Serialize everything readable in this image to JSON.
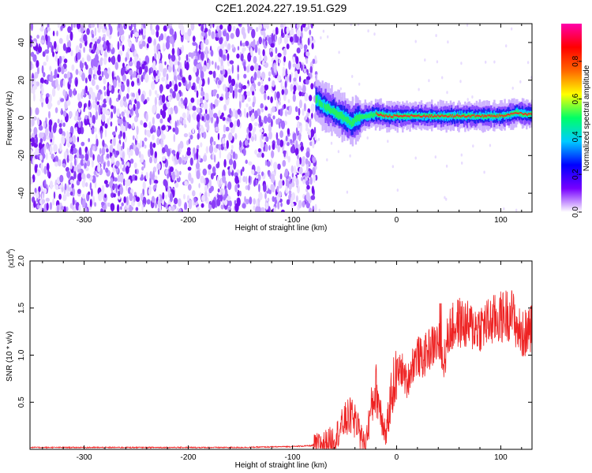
{
  "title": "C2E1.2024.227.19.51.G29",
  "chart_data": [
    {
      "type": "heatmap",
      "title": "C2E1.2024.227.19.51.G29",
      "xlabel": "Height of straight line (km)",
      "ylabel": "Frequency (Hz)",
      "xlim": [
        -352,
        130
      ],
      "ylim": [
        -50,
        50
      ],
      "x_ticks": [
        -300,
        -200,
        -100,
        0,
        100
      ],
      "x_tick_labels": [
        "-300",
        "-200",
        "-100",
        "0",
        "100"
      ],
      "y_ticks": [
        -40,
        -20,
        0,
        20,
        40
      ],
      "y_tick_labels": [
        "-40",
        "-20",
        "0",
        "20",
        "40"
      ],
      "noise_region_x": [
        -352,
        -77
      ],
      "signal_ridge": {
        "x": [
          -78,
          -72,
          -66,
          -60,
          -54,
          -48,
          -44,
          -40,
          -35,
          -30,
          -20,
          -10,
          0,
          10,
          20,
          40,
          60,
          80,
          100,
          110,
          115,
          120,
          130
        ],
        "freq": [
          10,
          7,
          5,
          3,
          1,
          -1,
          -3,
          -1,
          0,
          1,
          2,
          1,
          1,
          1,
          1,
          1,
          1,
          1,
          1,
          2,
          3,
          2,
          2
        ]
      },
      "colorbar": {
        "label": "Normalized spectral amplitude",
        "range": [
          0,
          1
        ],
        "ticks": [
          0.0,
          0.2,
          0.4,
          0.6,
          0.8
        ],
        "tick_labels": [
          "0.0",
          "0.2",
          "0.4",
          "0.6",
          "0.8"
        ],
        "colors": [
          "#ffffff",
          "#7700ff",
          "#0000ff",
          "#00ccff",
          "#00ff66",
          "#ffff00",
          "#ff6600",
          "#ff0000",
          "#ff00aa"
        ]
      }
    },
    {
      "type": "line",
      "xlabel": "Height of straight line (km)",
      "ylabel": "SNR (10 * v/v)",
      "multiplier_base": "(x10",
      "multiplier_exp": "4",
      "multiplier_close": ")",
      "xlim": [
        -352,
        130
      ],
      "ylim": [
        0,
        2.0
      ],
      "x_ticks": [
        -300,
        -200,
        -100,
        0,
        100
      ],
      "x_tick_labels": [
        "-300",
        "-200",
        "-100",
        "0",
        "100"
      ],
      "y_ticks": [
        0.5,
        1.0,
        1.5,
        2.0
      ],
      "y_tick_labels": [
        "0.5",
        "1.0",
        "1.5",
        "2.0"
      ],
      "series": [
        {
          "color": "#ee2222",
          "x": [
            -352,
            -300,
            -250,
            -200,
            -150,
            -100,
            -80,
            -70,
            -60,
            -55,
            -50,
            -45,
            -40,
            -35,
            -30,
            -25,
            -20,
            -15,
            -10,
            -5,
            0,
            5,
            10,
            15,
            20,
            25,
            30,
            35,
            40,
            45,
            50,
            60,
            70,
            80,
            90,
            100,
            110,
            120,
            130
          ],
          "y": [
            0.02,
            0.02,
            0.02,
            0.02,
            0.02,
            0.03,
            0.04,
            0.07,
            0.12,
            0.2,
            0.3,
            0.35,
            0.3,
            0.15,
            0.05,
            0.4,
            0.65,
            0.4,
            0.15,
            0.6,
            0.8,
            0.85,
            0.7,
            0.9,
            1.0,
            0.95,
            1.05,
            1.1,
            1.15,
            0.9,
            1.25,
            1.35,
            1.3,
            1.3,
            1.35,
            1.4,
            1.45,
            1.2,
            1.3
          ]
        }
      ]
    }
  ]
}
